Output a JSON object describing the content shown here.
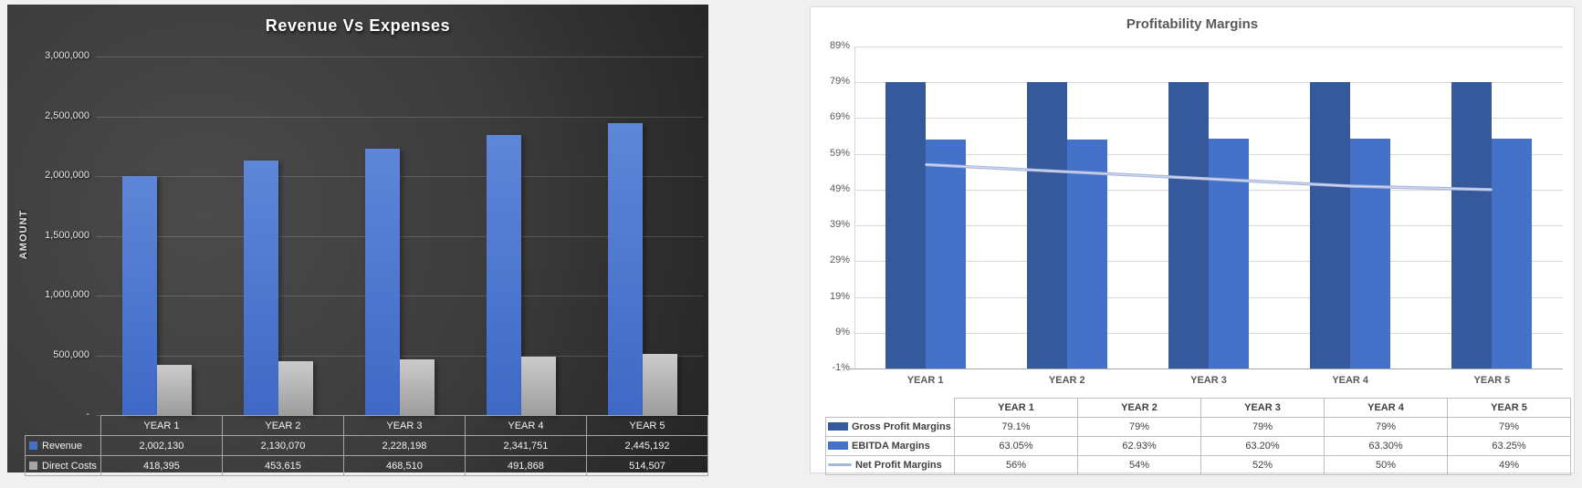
{
  "page": {
    "background": "#f0f0f1"
  },
  "chart_data": [
    {
      "type": "bar",
      "title": "Revenue Vs Expenses",
      "ylabel": "AMOUNT",
      "theme": "dark",
      "grid": true,
      "legend_position": "table-left",
      "ylim": [
        0,
        3000000
      ],
      "categories": [
        "YEAR 1",
        "YEAR 2",
        "YEAR 3",
        "YEAR 4",
        "YEAR 5"
      ],
      "y_ticks": [
        {
          "value": 3000000,
          "label": "3,000,000"
        },
        {
          "value": 2500000,
          "label": "2,500,000"
        },
        {
          "value": 2000000,
          "label": "2,000,000"
        },
        {
          "value": 1500000,
          "label": "1,500,000"
        },
        {
          "value": 1000000,
          "label": "1,000,000"
        },
        {
          "value": 500000,
          "label": "500,000"
        },
        {
          "value": 0,
          "label": "-"
        }
      ],
      "series": [
        {
          "name": "Revenue",
          "values": [
            2002130,
            2130070,
            2228198,
            2341751,
            2445192
          ],
          "display": [
            "2,002,130",
            "2,130,070",
            "2,228,198",
            "2,341,751",
            "2,445,192"
          ],
          "bar_top": "#5e86d8",
          "bar_bottom": "#3f69c6",
          "swatch": "#4472c4"
        },
        {
          "name": "Direct Costs",
          "values": [
            418395,
            453615,
            468510,
            491868,
            514507
          ],
          "display": [
            "418,395",
            "453,615",
            "468,510",
            "491,868",
            "514,507"
          ],
          "bar_top": "#cbcbcb",
          "bar_bottom": "#9d9d9d",
          "swatch": "#a6a6a6"
        }
      ],
      "colors": {
        "grid": "rgba(255,255,255,0.16)",
        "table_border": "#a6a6a6",
        "text": "#f2f2f2"
      }
    },
    {
      "type": "combo",
      "title": "Profitability Margins",
      "theme": "light",
      "grid": true,
      "legend_position": "table-left",
      "ylim": [
        -1,
        89
      ],
      "categories": [
        "YEAR 1",
        "YEAR 2",
        "YEAR 3",
        "YEAR 4",
        "YEAR 5"
      ],
      "y_ticks": [
        {
          "value": 89,
          "label": "89%"
        },
        {
          "value": 79,
          "label": "79%"
        },
        {
          "value": 69,
          "label": "69%"
        },
        {
          "value": 59,
          "label": "59%"
        },
        {
          "value": 49,
          "label": "49%"
        },
        {
          "value": 39,
          "label": "39%"
        },
        {
          "value": 29,
          "label": "29%"
        },
        {
          "value": 19,
          "label": "19%"
        },
        {
          "value": 9,
          "label": "9%"
        },
        {
          "value": -1,
          "label": "-1%"
        }
      ],
      "series": [
        {
          "name": "Gross Profit Margins",
          "chart": "bar",
          "values": [
            79.1,
            79,
            79,
            79,
            79
          ],
          "display": [
            "79.1%",
            "79%",
            "79%",
            "79%",
            "79%"
          ],
          "color": "#35599b"
        },
        {
          "name": "EBITDA Margins",
          "chart": "bar",
          "values": [
            63.05,
            62.93,
            63.2,
            63.3,
            63.25
          ],
          "display": [
            "63.05%",
            "62.93%",
            "63.20%",
            "63.30%",
            "63.25%"
          ],
          "color": "#4472c8"
        },
        {
          "name": "Net Profit Margins",
          "chart": "line",
          "values": [
            56,
            54,
            52,
            50,
            49
          ],
          "display": [
            "56%",
            "54%",
            "52%",
            "50%",
            "49%"
          ],
          "color": "#a9b7dd",
          "color_highlight": "#d6ddf1"
        }
      ],
      "colors": {
        "grid": "#d9d9d9",
        "axis": "#a6a6a6",
        "table_border": "#bfbfbf",
        "text": "#595959",
        "table_text": "#404040"
      }
    }
  ]
}
